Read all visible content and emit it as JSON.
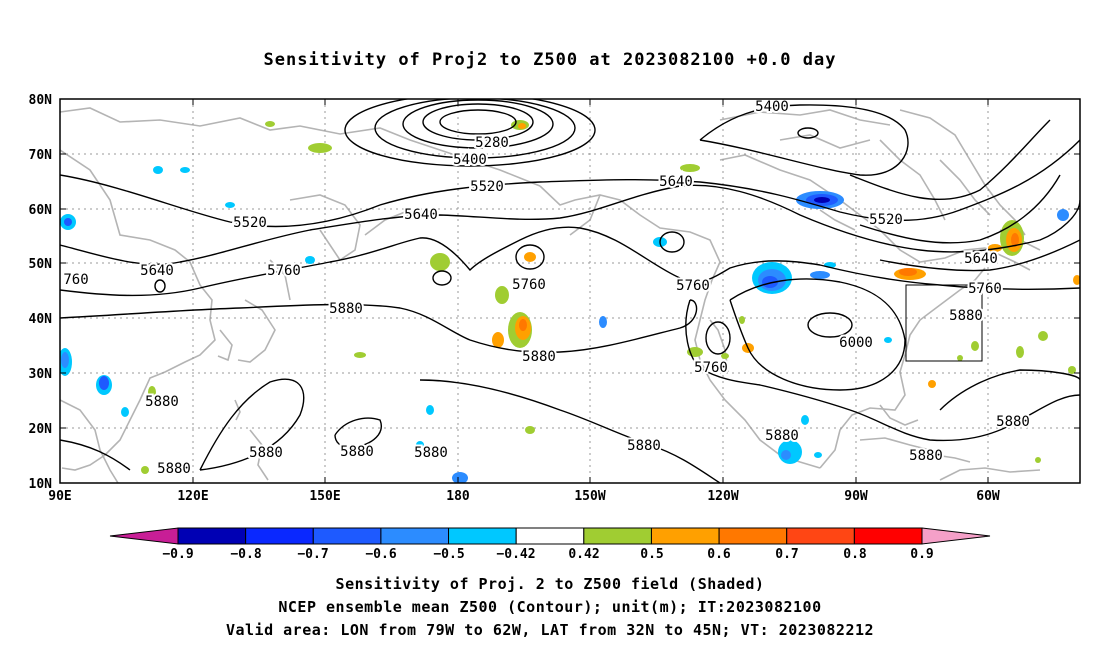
{
  "title": "Sensitivity of Proj2 to Z500 at 2023082100 +0.0 day",
  "lat_labels": [
    "80N",
    "70N",
    "60N",
    "50N",
    "40N",
    "30N",
    "20N",
    "10N"
  ],
  "lon_labels": [
    "90E",
    "120E",
    "150E",
    "180",
    "150W",
    "120W",
    "90W",
    "60W"
  ],
  "contour_labels": {
    "c5280": "5280",
    "c5400a": "5400",
    "c5400b": "5400",
    "c5520a": "5520",
    "c5520b": "5520",
    "c5520c": "5520",
    "c5640a": "5640",
    "c5640b": "5640",
    "c5640c": "5640",
    "c5640d": "5640",
    "c5760a": "5760",
    "c5760b": "5760",
    "c5760c": "5760",
    "c5760d": "5760",
    "c5760e": "5760",
    "c760": "760",
    "c5880a": "5880",
    "c5880b": "5880",
    "c5880c": "5880",
    "c5880d": "5880",
    "c5880e": "5880",
    "c5880f": "5880",
    "c5880g": "5880",
    "c5880h": "5880",
    "c5880i": "5880",
    "c5880j": "5880",
    "c5880k": "5880",
    "c5880l": "5880",
    "c6000": "6000"
  },
  "colorbar": {
    "labels": [
      "−0.9",
      "−0.8",
      "−0.7",
      "−0.6",
      "−0.5",
      "−0.42",
      "0.42",
      "0.5",
      "0.6",
      "0.7",
      "0.8",
      "0.9"
    ],
    "colors": [
      "#0000b4",
      "#0a28ff",
      "#1e5aff",
      "#2c8cff",
      "#00c8ff",
      "#ffffff",
      "#a0cd32",
      "#ffa000",
      "#ff7800",
      "#ff4614",
      "#ff0000"
    ],
    "low_extend_color": "#c81e96",
    "high_extend_color": "#f5a0c8"
  },
  "captions": {
    "line1": "Sensitivity of Proj. 2 to Z500 field (Shaded)",
    "line2": "NCEP ensemble mean Z500 (Contour); unit(m); IT:2023082100",
    "line3": "Valid area: LON from 79W to 62W, LAT from 32N to 45N; VT: 2023082212"
  }
}
